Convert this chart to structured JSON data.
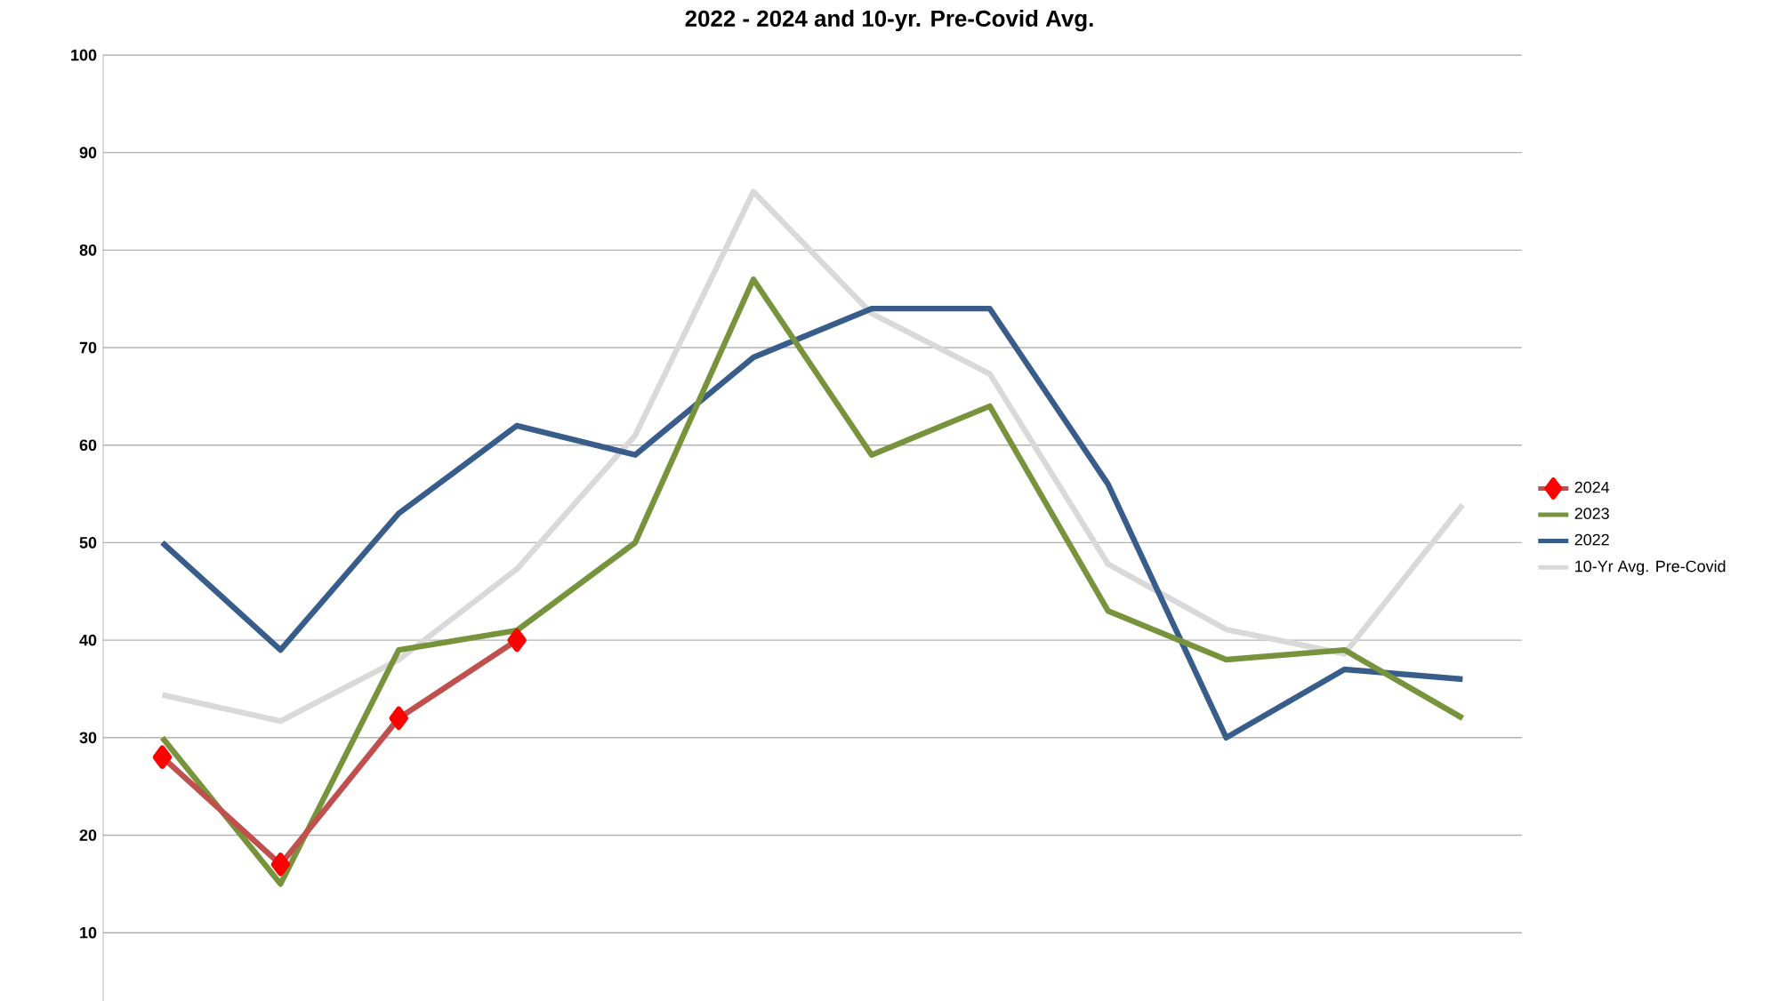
{
  "chart_data": {
    "type": "line",
    "title": "2022 - 2024 and 10-yr. Pre-Covid Avg.",
    "categories": [
      null,
      null,
      null,
      null,
      null,
      null,
      null,
      null,
      null,
      null,
      null,
      null
    ],
    "series": [
      {
        "name": "2024",
        "color": "#c0504d",
        "marker": "diamond",
        "values": [
          28,
          17,
          32,
          40,
          null,
          null,
          null,
          null,
          null,
          null,
          null,
          null
        ]
      },
      {
        "name": "2023",
        "color": "#77933c",
        "values": [
          30,
          15,
          39,
          41,
          50,
          77,
          59,
          64,
          43,
          38,
          39,
          32
        ]
      },
      {
        "name": "2022",
        "color": "#385d8a",
        "values": [
          50,
          39,
          53,
          62,
          59,
          69,
          74,
          74,
          56,
          30,
          37,
          36
        ]
      },
      {
        "name": "10-Yr Avg. Pre-Covid",
        "color": "#d9d9d9",
        "values": [
          34.4,
          31.7,
          38,
          47.3,
          61,
          86,
          73.5,
          67.3,
          47.8,
          41.1,
          38.6,
          53.9
        ]
      }
    ],
    "ylim": [
      3,
      100
    ],
    "yticks": [
      10,
      20,
      30,
      40,
      50,
      60,
      70,
      80,
      90,
      100
    ],
    "grid": "y",
    "legend": "right",
    "tick_labels": "y"
  }
}
